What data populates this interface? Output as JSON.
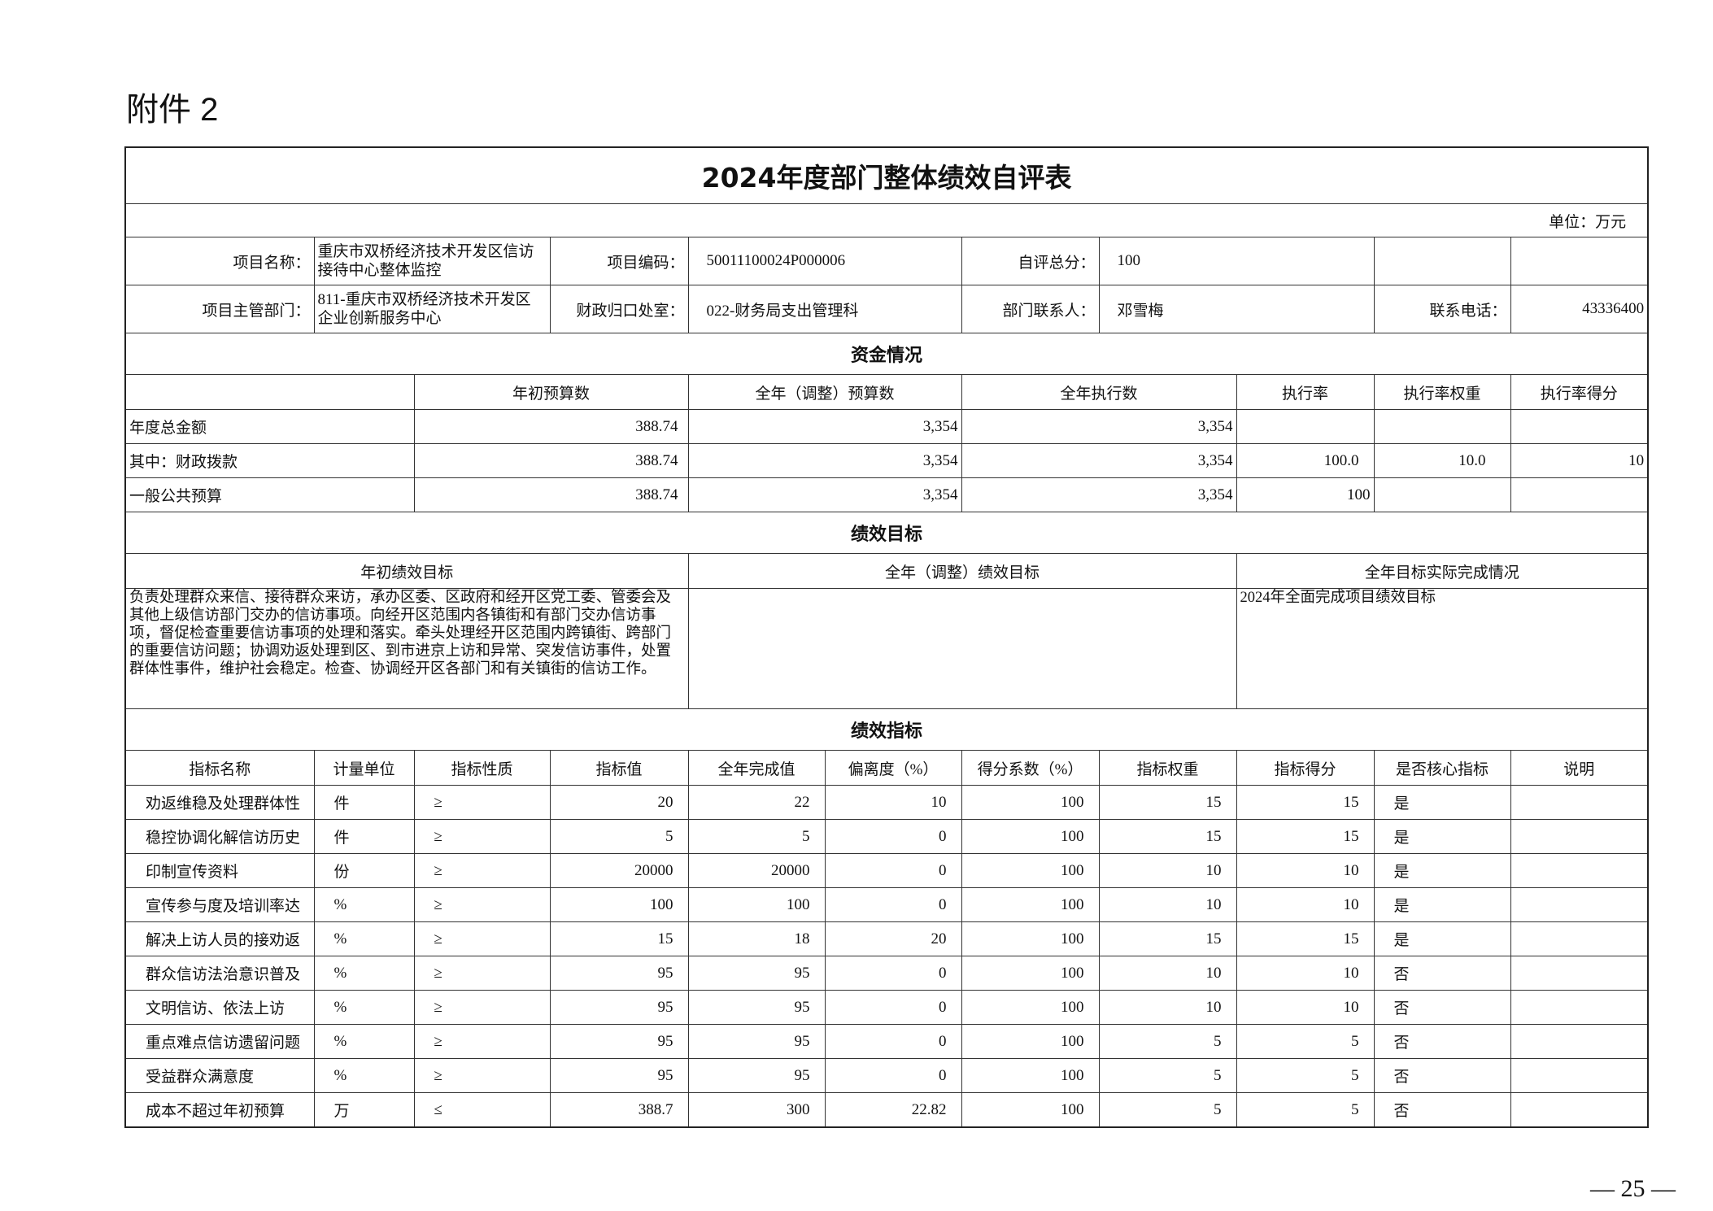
{
  "attachment_label": "附件 2",
  "page_number": "— 25 —",
  "title": "2024年度部门整体绩效自评表",
  "unit": "单位：万元",
  "info": {
    "project_name_label": "项目名称：",
    "project_name": "重庆市双桥经济技术开发区信访接待中心整体监控",
    "project_code_label": "项目编码：",
    "project_code": "50011100024P000006",
    "score_label": "自评总分：",
    "score": "100",
    "dept_label": "项目主管部门：",
    "dept": "811-重庆市双桥经济技术开发区企业创新服务中心",
    "finance_label": "财政归口处室：",
    "finance": "022-财务局支出管理科",
    "contact_label": "部门联系人：",
    "contact": "邓雪梅",
    "phone_label": "联系电话：",
    "phone": "43336400"
  },
  "funds": {
    "section": "资金情况",
    "headers": [
      "年初预算数",
      "全年（调整）预算数",
      "全年执行数",
      "执行率",
      "执行率权重",
      "执行率得分"
    ],
    "rows": [
      {
        "label": "年度总金额",
        "values": [
          "388.74",
          "3,354",
          "3,354",
          "",
          "",
          ""
        ]
      },
      {
        "label": "其中：财政拨款",
        "values": [
          "388.74",
          "3,354",
          "3,354",
          "100.0",
          "10.0",
          "10"
        ]
      },
      {
        "label": "一般公共预算",
        "values": [
          "388.74",
          "3,354",
          "3,354",
          "100",
          "",
          ""
        ]
      }
    ]
  },
  "goals": {
    "section": "绩效目标",
    "headers": [
      "年初绩效目标",
      "全年（调整）绩效目标",
      "全年目标实际完成情况"
    ],
    "initial": "负责处理群众来信、接待群众来访，承办区委、区政府和经开区党工委、管委会及其他上级信访部门交办的信访事项。向经开区范围内各镇街和有部门交办信访事项，督促检查重要信访事项的处理和落实。牵头处理经开区范围内跨镇街、跨部门的重要信访问题；协调劝返处理到区、到市进京上访和异常、突发信访事件，处置群体性事件，维护社会稳定。检查、协调经开区各部门和有关镇街的信访工作。",
    "adjusted": "",
    "actual": "2024年全面完成项目绩效目标"
  },
  "indicators": {
    "section": "绩效指标",
    "headers": [
      "指标名称",
      "计量单位",
      "指标性质",
      "指标值",
      "全年完成值",
      "偏离度（%）",
      "得分系数（%）",
      "指标权重",
      "指标得分",
      "是否核心指标",
      "说明"
    ],
    "rows": [
      [
        "劝返维稳及处理群体性",
        "件",
        "≥",
        "20",
        "22",
        "10",
        "100",
        "15",
        "15",
        "是",
        ""
      ],
      [
        "稳控协调化解信访历史",
        "件",
        "≥",
        "5",
        "5",
        "0",
        "100",
        "15",
        "15",
        "是",
        ""
      ],
      [
        "印制宣传资料",
        "份",
        "≥",
        "20000",
        "20000",
        "0",
        "100",
        "10",
        "10",
        "是",
        ""
      ],
      [
        "宣传参与度及培训率达",
        "%",
        "≥",
        "100",
        "100",
        "0",
        "100",
        "10",
        "10",
        "是",
        ""
      ],
      [
        "解决上访人员的接劝返",
        "%",
        "≥",
        "15",
        "18",
        "20",
        "100",
        "15",
        "15",
        "是",
        ""
      ],
      [
        "群众信访法治意识普及",
        "%",
        "≥",
        "95",
        "95",
        "0",
        "100",
        "10",
        "10",
        "否",
        ""
      ],
      [
        "文明信访、依法上访",
        "%",
        "≥",
        "95",
        "95",
        "0",
        "100",
        "10",
        "10",
        "否",
        ""
      ],
      [
        "重点难点信访遗留问题",
        "%",
        "≥",
        "95",
        "95",
        "0",
        "100",
        "5",
        "5",
        "否",
        ""
      ],
      [
        "受益群众满意度",
        "%",
        "≥",
        "95",
        "95",
        "0",
        "100",
        "5",
        "5",
        "否",
        ""
      ],
      [
        "成本不超过年初预算",
        "万",
        "≤",
        "388.7",
        "300",
        "22.82",
        "100",
        "5",
        "5",
        "否",
        ""
      ]
    ]
  }
}
